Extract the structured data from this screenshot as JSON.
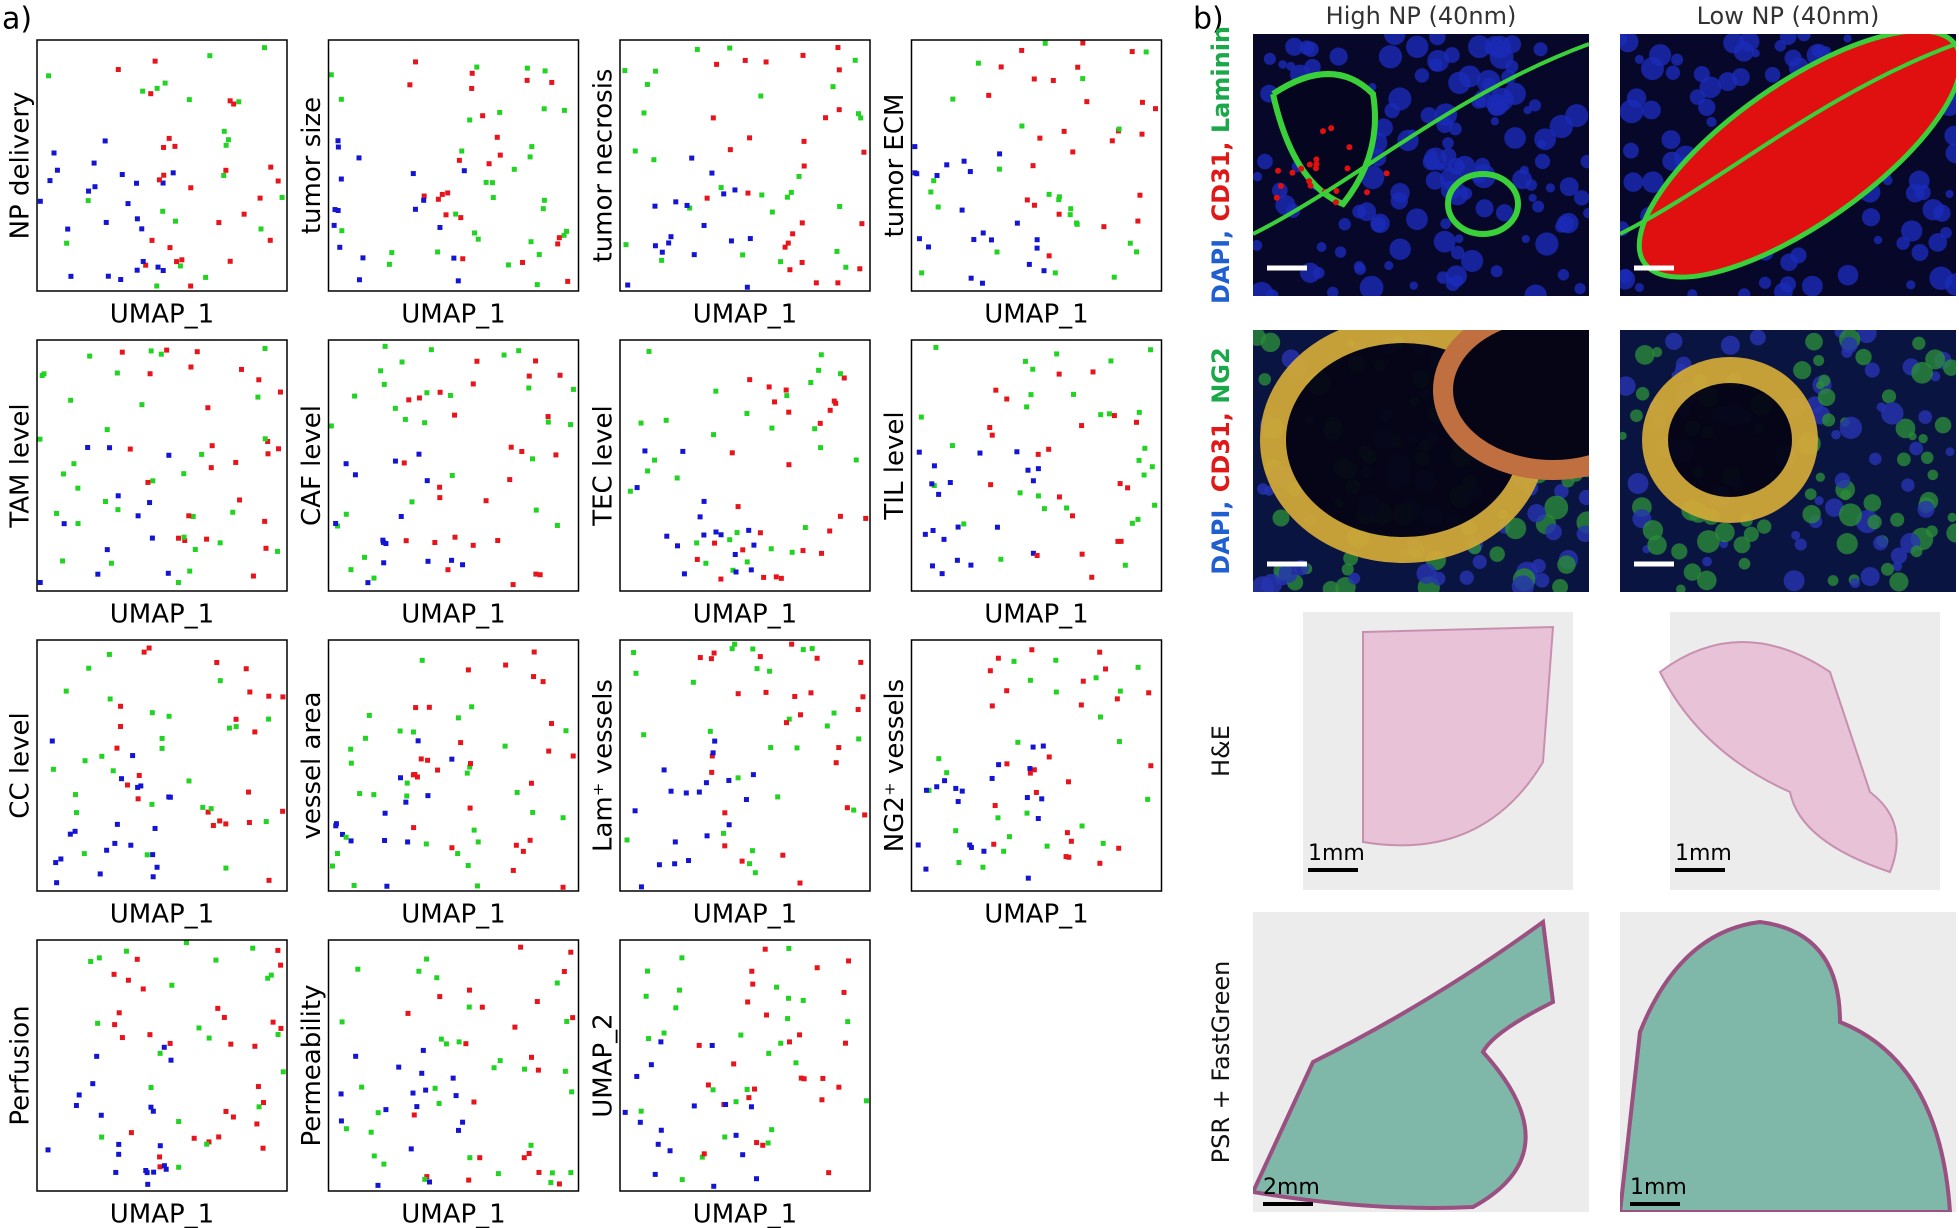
{
  "panel_a": {
    "label": "a)",
    "plots": [
      {
        "y_label": "NP delivery",
        "x_label": "UMAP_1"
      },
      {
        "y_label": "tumor size",
        "x_label": "UMAP_1"
      },
      {
        "y_label": "tumor necrosis",
        "x_label": "UMAP_1"
      },
      {
        "y_label": "tumor ECM",
        "x_label": "UMAP_1"
      },
      {
        "y_label": "TAM level",
        "x_label": "UMAP_1"
      },
      {
        "y_label": "CAF level",
        "x_label": "UMAP_1"
      },
      {
        "y_label": "TEC level",
        "x_label": "UMAP_1"
      },
      {
        "y_label": "TIL level",
        "x_label": "UMAP_1"
      },
      {
        "y_label": "CC level",
        "x_label": "UMAP_1"
      },
      {
        "y_label": "vessel area",
        "x_label": "UMAP_1"
      },
      {
        "y_label": "Lam⁺ vessels",
        "x_label": "UMAP_1"
      },
      {
        "y_label": "NG2⁺ vessels",
        "x_label": "UMAP_1"
      },
      {
        "y_label": "Perfusion",
        "x_label": "UMAP_1"
      },
      {
        "y_label": "Permeability",
        "x_label": "UMAP_1"
      },
      {
        "y_label": "UMAP_2",
        "x_label": "UMAP_1"
      }
    ]
  },
  "panel_b": {
    "label": "b)",
    "columns": [
      "High NP (40nm)",
      "Low NP (40nm)"
    ],
    "rows": [
      {
        "label_parts": [
          {
            "text": "DAPI, ",
            "color": "#1f5fd0"
          },
          {
            "text": "CD31, ",
            "color": "#e01818"
          },
          {
            "text": "Laminin",
            "color": "#1aa84a"
          }
        ]
      },
      {
        "label_parts": [
          {
            "text": "DAPI, ",
            "color": "#1f5fd0"
          },
          {
            "text": "CD31, ",
            "color": "#e01818"
          },
          {
            "text": "NG2",
            "color": "#1aa84a"
          }
        ]
      },
      {
        "label_parts": [
          {
            "text": "H&E",
            "color": "#111111"
          }
        ],
        "scale_bars": [
          "1mm",
          "1mm"
        ]
      },
      {
        "label_parts": [
          {
            "text": "PSR + FastGreen",
            "color": "#111111"
          }
        ],
        "scale_bars": [
          "2mm",
          "1mm"
        ]
      }
    ]
  }
}
